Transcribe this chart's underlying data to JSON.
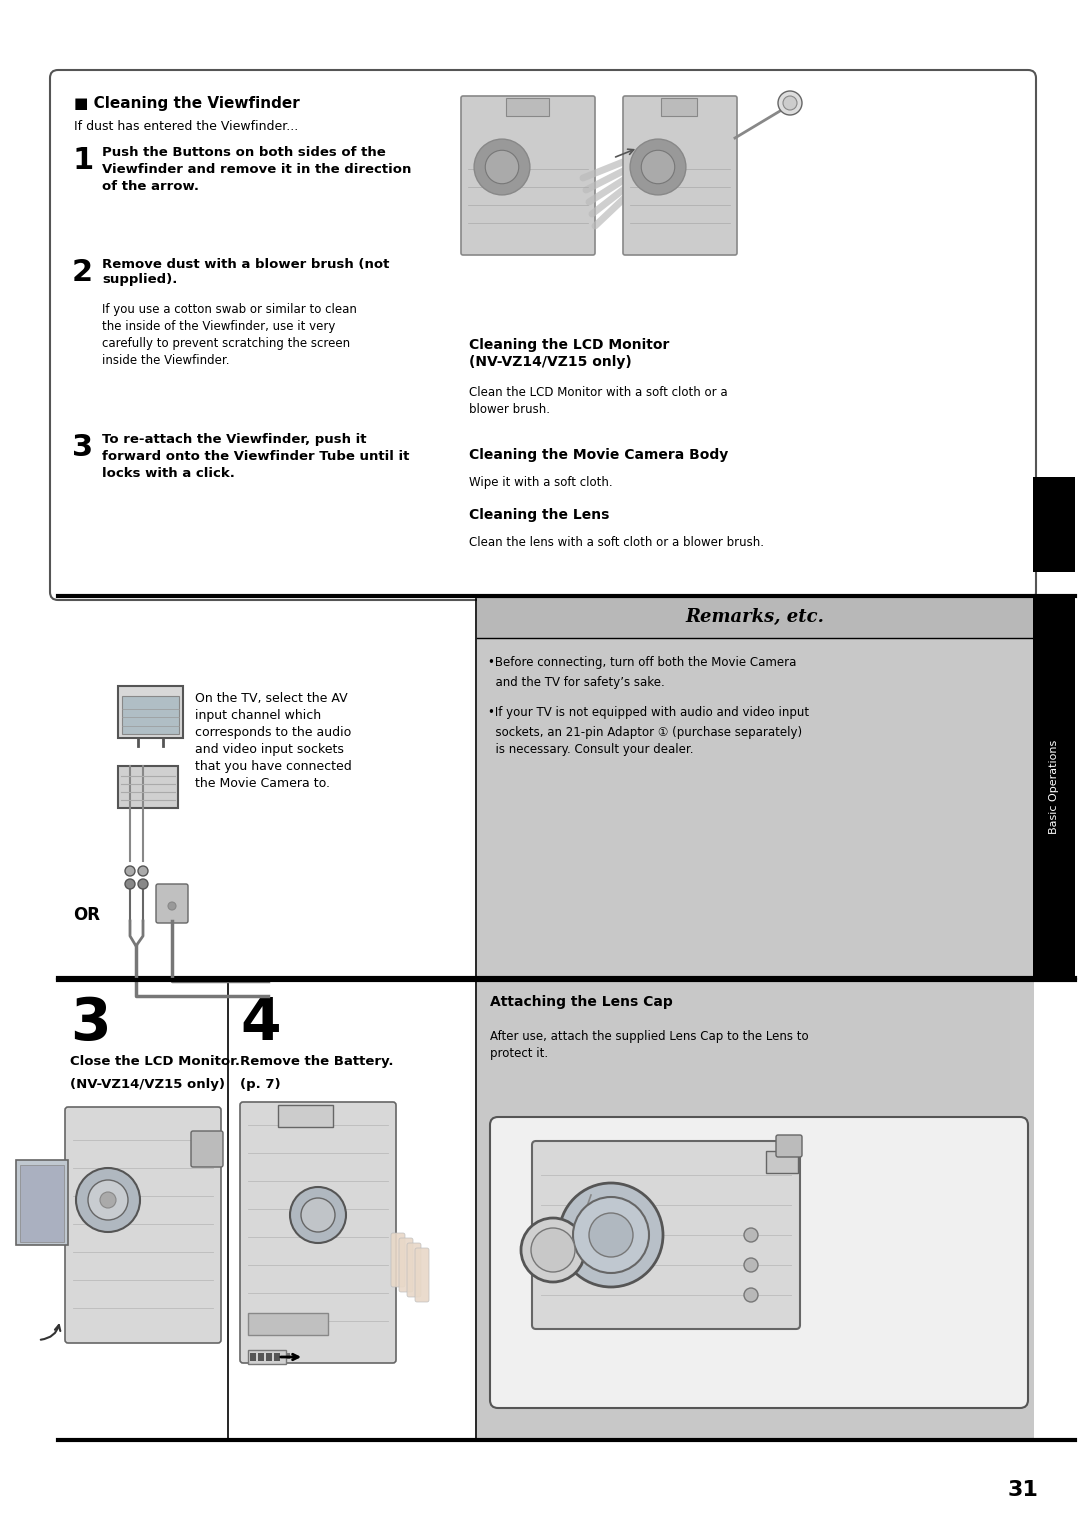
{
  "bg_color": "#ffffff",
  "page_number": "31",
  "sidebar_text": "Basic Operations",
  "top_box_title": "■ Cleaning the Viewfinder",
  "top_box_subtitle": "If dust has entered the Viewfinder...",
  "step1_bold": "Push the Buttons on both sides of the\nViewfinder and remove it in the direction\nof the arrow.",
  "step2_bold": "Remove dust with a blower brush (not\nsupplied).",
  "step2_normal": "If you use a cotton swab or similar to clean\nthe inside of the Viewfinder, use it very\ncarefully to prevent scratching the screen\ninside the Viewfinder.",
  "step3_bold": "To re-attach the Viewfinder, push it\nforward onto the Viewfinder Tube until it\nlocks with a click.",
  "lcd_title": "Cleaning the LCD Monitor\n(NV-VZ14/VZ15 only)",
  "lcd_text": "Clean the LCD Monitor with a soft cloth or a\nblower brush.",
  "body_title": "Cleaning the Movie Camera Body",
  "body_text": "Wipe it with a soft cloth.",
  "lens_title": "Cleaning the Lens",
  "lens_text": "Clean the lens with a soft cloth or a blower brush.",
  "remarks_title": "Remarks, etc.",
  "bullet1_head": "•Before connecting, turn off both the Movie Camera",
  "bullet1_cont": "  and the TV for safety’s sake.",
  "bullet2_head": "•If your TV is not equipped with audio and video input",
  "bullet2_cont": "  sockets, an 21-pin Adaptor ① (purchase separately)\n  is necessary. Consult your dealer.",
  "tv_caption": "On the TV, select the AV\ninput channel which\ncorresponds to the audio\nand video input sockets\nthat you have connected\nthe Movie Camera to.",
  "or_text": "OR",
  "bot_step3_num": "3",
  "bot_step3_label": "Close the LCD Monitor.",
  "bot_step3_sub": "(NV-VZ14/VZ15 only)",
  "bot_step4_num": "4",
  "bot_step4_label": "Remove the Battery.",
  "bot_step4_sub": "(p. 7)",
  "lens_cap_title": "Attaching the Lens Cap",
  "lens_cap_text": "After use, attach the supplied Lens Cap to the Lens to\nprotect it.",
  "illus_color": "#cccccc",
  "illus_edge": "#888888",
  "gray_bg": "#c8c8c8",
  "line_color": "#000000",
  "box_edge": "#555555"
}
